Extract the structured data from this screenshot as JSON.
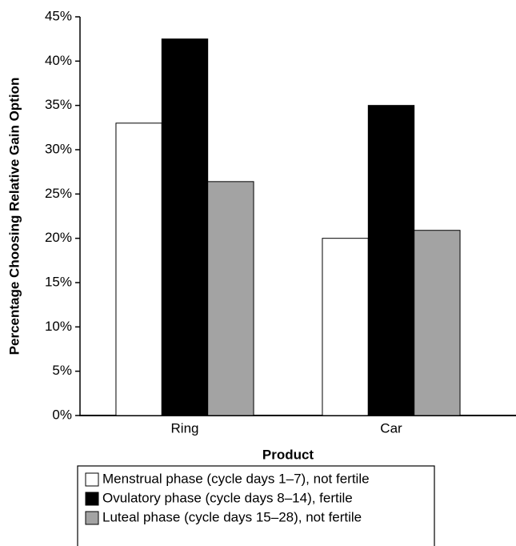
{
  "chart_data": {
    "type": "bar",
    "x_label": "Product",
    "y_label": "Percentage Choosing Relative Gain Option",
    "categories": [
      "Ring",
      "Car"
    ],
    "series": [
      {
        "name": "Menstrual phase (cycle days 1–7), not fertile",
        "color": "#ffffff",
        "values": [
          33,
          20
        ]
      },
      {
        "name": "Ovulatory phase (cycle days 8–14), fertile",
        "color": "#000000",
        "values": [
          42.5,
          35
        ]
      },
      {
        "name": "Luteal phase (cycle days 15–28), not fertile",
        "color": "#a3a3a3",
        "values": [
          26.4,
          20.9
        ]
      }
    ],
    "ylim": [
      0,
      45
    ],
    "yticks": [
      {
        "value": 0,
        "label": "0%"
      },
      {
        "value": 5,
        "label": "5%"
      },
      {
        "value": 10,
        "label": "10%"
      },
      {
        "value": 15,
        "label": "15%"
      },
      {
        "value": 20,
        "label": "20%"
      },
      {
        "value": 25,
        "label": "25%"
      },
      {
        "value": 30,
        "label": "30%"
      },
      {
        "value": 35,
        "label": "35%"
      },
      {
        "value": 40,
        "label": "40%"
      },
      {
        "value": 45,
        "label": "45%"
      }
    ],
    "grid": false
  }
}
